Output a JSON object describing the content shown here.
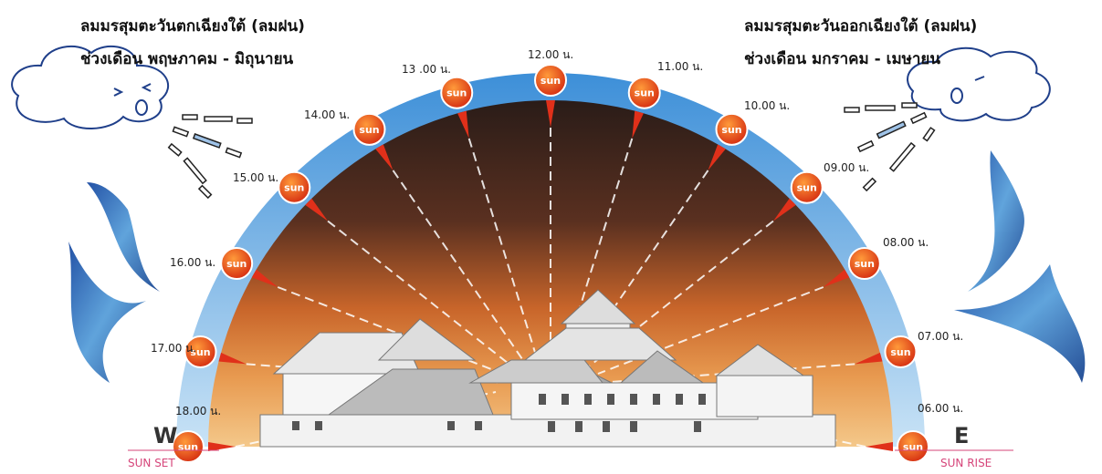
{
  "wind_left": {
    "title": "ลมมรสุมตะวันตกเฉียงใต้ (ลมฝน)",
    "period": "ช่วงเดือน พฤษภาคม - มิถุนายน"
  },
  "wind_right": {
    "title": "ลมมรสุมตะวันออกเฉียงใต้ (ลมฝน)",
    "period": "ช่วงเดือน มกราคม - เมษายน"
  },
  "sun_times": [
    "06.00 น.",
    "07.00 น.",
    "08.00 น.",
    "09.00 น.",
    "10.00 น.",
    "11.00 น.",
    "12.00 น.",
    "13 .00 น.",
    "14.00 น.",
    "15.00 น.",
    "16.00 น.",
    "17.00 น.",
    "18.00 น."
  ],
  "sun_label": "sun",
  "west": {
    "letter": "W",
    "caption": "SUN SET"
  },
  "east": {
    "letter": "E",
    "caption": "SUN RISE"
  }
}
